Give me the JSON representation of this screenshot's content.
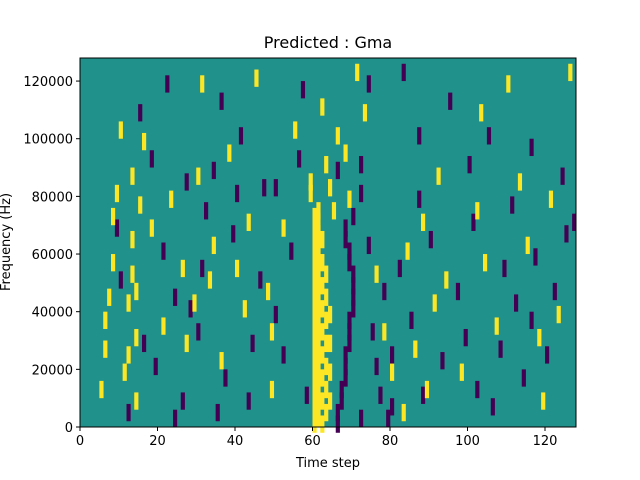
{
  "chart_data": {
    "type": "heatmap",
    "title": "Predicted : Gma",
    "xlabel": "Time step",
    "ylabel": "Frequency (Hz)",
    "xlim": [
      0,
      128
    ],
    "ylim": [
      0,
      128000
    ],
    "x_ticks": [
      0,
      20,
      40,
      60,
      80,
      100,
      120
    ],
    "y_ticks": [
      0,
      20000,
      40000,
      60000,
      80000,
      100000,
      120000
    ],
    "y_tick_labels": [
      "0",
      "20000",
      "40000",
      "60000",
      "80000",
      "100000",
      "120000"
    ],
    "grid": false,
    "colormap": "viridis",
    "colors": {
      "background": "#21918c",
      "high": "#fde725",
      "low": "#440154"
    },
    "value_levels": {
      "low": 0,
      "mid": 1,
      "high": 2
    },
    "cells_note_units": "x = time step, y = frequency in Hz (cells are 1 step wide, 2000 Hz tall)",
    "high_cells": [
      [
        60,
        2000
      ],
      [
        60,
        6000
      ],
      [
        60,
        10000
      ],
      [
        60,
        14000
      ],
      [
        60,
        18000
      ],
      [
        60,
        22000
      ],
      [
        60,
        26000
      ],
      [
        60,
        30000
      ],
      [
        60,
        34000
      ],
      [
        60,
        38000
      ],
      [
        60,
        42000
      ],
      [
        60,
        46000
      ],
      [
        60,
        50000
      ],
      [
        60,
        54000
      ],
      [
        60,
        58000
      ],
      [
        60,
        62000
      ],
      [
        60,
        66000
      ],
      [
        60,
        70000
      ],
      [
        60,
        74000
      ],
      [
        61,
        4000
      ],
      [
        61,
        8000
      ],
      [
        61,
        12000
      ],
      [
        61,
        16000
      ],
      [
        61,
        20000
      ],
      [
        61,
        24000
      ],
      [
        61,
        28000
      ],
      [
        61,
        32000
      ],
      [
        61,
        36000
      ],
      [
        61,
        40000
      ],
      [
        61,
        44000
      ],
      [
        61,
        48000
      ],
      [
        61,
        52000
      ],
      [
        61,
        56000
      ],
      [
        61,
        60000
      ],
      [
        61,
        64000
      ],
      [
        61,
        68000
      ],
      [
        61,
        72000
      ],
      [
        61,
        76000
      ],
      [
        62,
        2000
      ],
      [
        62,
        10000
      ],
      [
        62,
        18000
      ],
      [
        62,
        26000
      ],
      [
        62,
        34000
      ],
      [
        62,
        42000
      ],
      [
        62,
        50000
      ],
      [
        62,
        58000
      ],
      [
        62,
        66000
      ],
      [
        63,
        6000
      ],
      [
        63,
        14000
      ],
      [
        63,
        22000
      ],
      [
        63,
        30000
      ],
      [
        63,
        38000
      ],
      [
        63,
        46000
      ],
      [
        63,
        54000
      ],
      [
        64,
        10000
      ],
      [
        64,
        20000
      ],
      [
        64,
        30000
      ],
      [
        64,
        40000
      ],
      [
        59,
        82000
      ],
      [
        59,
        86000
      ],
      [
        63,
        92000
      ],
      [
        64,
        84000
      ],
      [
        65,
        76000
      ],
      [
        66,
        102000
      ],
      [
        68,
        96000
      ],
      [
        69,
        80000
      ],
      [
        5,
        14000
      ],
      [
        6,
        28000
      ],
      [
        6,
        38000
      ],
      [
        7,
        46000
      ],
      [
        8,
        58000
      ],
      [
        8,
        74000
      ],
      [
        9,
        82000
      ],
      [
        10,
        104000
      ],
      [
        11,
        20000
      ],
      [
        12,
        26000
      ],
      [
        12,
        44000
      ],
      [
        13,
        54000
      ],
      [
        13,
        66000
      ],
      [
        13,
        88000
      ],
      [
        14,
        10000
      ],
      [
        14,
        32000
      ],
      [
        14,
        48000
      ],
      [
        15,
        78000
      ],
      [
        16,
        100000
      ],
      [
        18,
        70000
      ],
      [
        21,
        36000
      ],
      [
        23,
        80000
      ],
      [
        26,
        56000
      ],
      [
        27,
        30000
      ],
      [
        29,
        44000
      ],
      [
        30,
        88000
      ],
      [
        31,
        120000
      ],
      [
        33,
        52000
      ],
      [
        34,
        64000
      ],
      [
        36,
        24000
      ],
      [
        38,
        96000
      ],
      [
        40,
        56000
      ],
      [
        42,
        42000
      ],
      [
        43,
        72000
      ],
      [
        45,
        122000
      ],
      [
        48,
        48000
      ],
      [
        49,
        14000
      ],
      [
        49,
        34000
      ],
      [
        52,
        70000
      ],
      [
        55,
        104000
      ],
      [
        62,
        112000
      ],
      [
        71,
        124000
      ],
      [
        73,
        110000
      ],
      [
        76,
        54000
      ],
      [
        78,
        34000
      ],
      [
        80,
        20000
      ],
      [
        83,
        6000
      ],
      [
        84,
        62000
      ],
      [
        86,
        28000
      ],
      [
        88,
        72000
      ],
      [
        89,
        14000
      ],
      [
        91,
        44000
      ],
      [
        92,
        88000
      ],
      [
        94,
        52000
      ],
      [
        98,
        20000
      ],
      [
        102,
        76000
      ],
      [
        103,
        110000
      ],
      [
        104,
        58000
      ],
      [
        107,
        36000
      ],
      [
        110,
        120000
      ],
      [
        113,
        86000
      ],
      [
        115,
        64000
      ],
      [
        118,
        32000
      ],
      [
        119,
        10000
      ],
      [
        121,
        80000
      ],
      [
        123,
        40000
      ],
      [
        126,
        124000
      ]
    ],
    "low_cells": [
      [
        66,
        2000
      ],
      [
        66,
        6000
      ],
      [
        67,
        10000
      ],
      [
        67,
        14000
      ],
      [
        68,
        18000
      ],
      [
        68,
        22000
      ],
      [
        68,
        26000
      ],
      [
        69,
        30000
      ],
      [
        69,
        34000
      ],
      [
        69,
        38000
      ],
      [
        70,
        42000
      ],
      [
        70,
        46000
      ],
      [
        70,
        50000
      ],
      [
        70,
        54000
      ],
      [
        69,
        58000
      ],
      [
        69,
        62000
      ],
      [
        68,
        66000
      ],
      [
        68,
        70000
      ],
      [
        70,
        74000
      ],
      [
        72,
        82000
      ],
      [
        72,
        92000
      ],
      [
        74,
        64000
      ],
      [
        75,
        34000
      ],
      [
        76,
        22000
      ],
      [
        77,
        12000
      ],
      [
        79,
        4000
      ],
      [
        80,
        8000
      ],
      [
        12,
        6000
      ],
      [
        16,
        30000
      ],
      [
        19,
        22000
      ],
      [
        21,
        62000
      ],
      [
        24,
        4000
      ],
      [
        26,
        10000
      ],
      [
        27,
        86000
      ],
      [
        28,
        42000
      ],
      [
        31,
        56000
      ],
      [
        32,
        76000
      ],
      [
        35,
        6000
      ],
      [
        37,
        18000
      ],
      [
        39,
        68000
      ],
      [
        41,
        102000
      ],
      [
        44,
        30000
      ],
      [
        46,
        52000
      ],
      [
        47,
        84000
      ],
      [
        50,
        40000
      ],
      [
        52,
        26000
      ],
      [
        54,
        62000
      ],
      [
        57,
        118000
      ],
      [
        58,
        12000
      ],
      [
        66,
        90000
      ],
      [
        72,
        4000
      ],
      [
        74,
        120000
      ],
      [
        78,
        48000
      ],
      [
        80,
        26000
      ],
      [
        82,
        56000
      ],
      [
        85,
        38000
      ],
      [
        87,
        80000
      ],
      [
        88,
        12000
      ],
      [
        90,
        66000
      ],
      [
        93,
        24000
      ],
      [
        95,
        114000
      ],
      [
        97,
        48000
      ],
      [
        99,
        32000
      ],
      [
        101,
        72000
      ],
      [
        102,
        14000
      ],
      [
        105,
        102000
      ],
      [
        108,
        28000
      ],
      [
        109,
        56000
      ],
      [
        111,
        78000
      ],
      [
        112,
        44000
      ],
      [
        114,
        18000
      ],
      [
        116,
        98000
      ],
      [
        117,
        60000
      ],
      [
        120,
        26000
      ],
      [
        122,
        48000
      ],
      [
        124,
        88000
      ],
      [
        125,
        68000
      ],
      [
        127,
        72000
      ],
      [
        10,
        52000
      ],
      [
        9,
        70000
      ],
      [
        15,
        110000
      ],
      [
        18,
        94000
      ],
      [
        22,
        120000
      ],
      [
        24,
        46000
      ],
      [
        30,
        34000
      ],
      [
        34,
        90000
      ],
      [
        36,
        114000
      ],
      [
        40,
        82000
      ],
      [
        43,
        10000
      ],
      [
        50,
        84000
      ],
      [
        56,
        94000
      ],
      [
        83,
        124000
      ],
      [
        87,
        102000
      ],
      [
        100,
        92000
      ],
      [
        106,
        8000
      ],
      [
        116,
        38000
      ]
    ]
  }
}
